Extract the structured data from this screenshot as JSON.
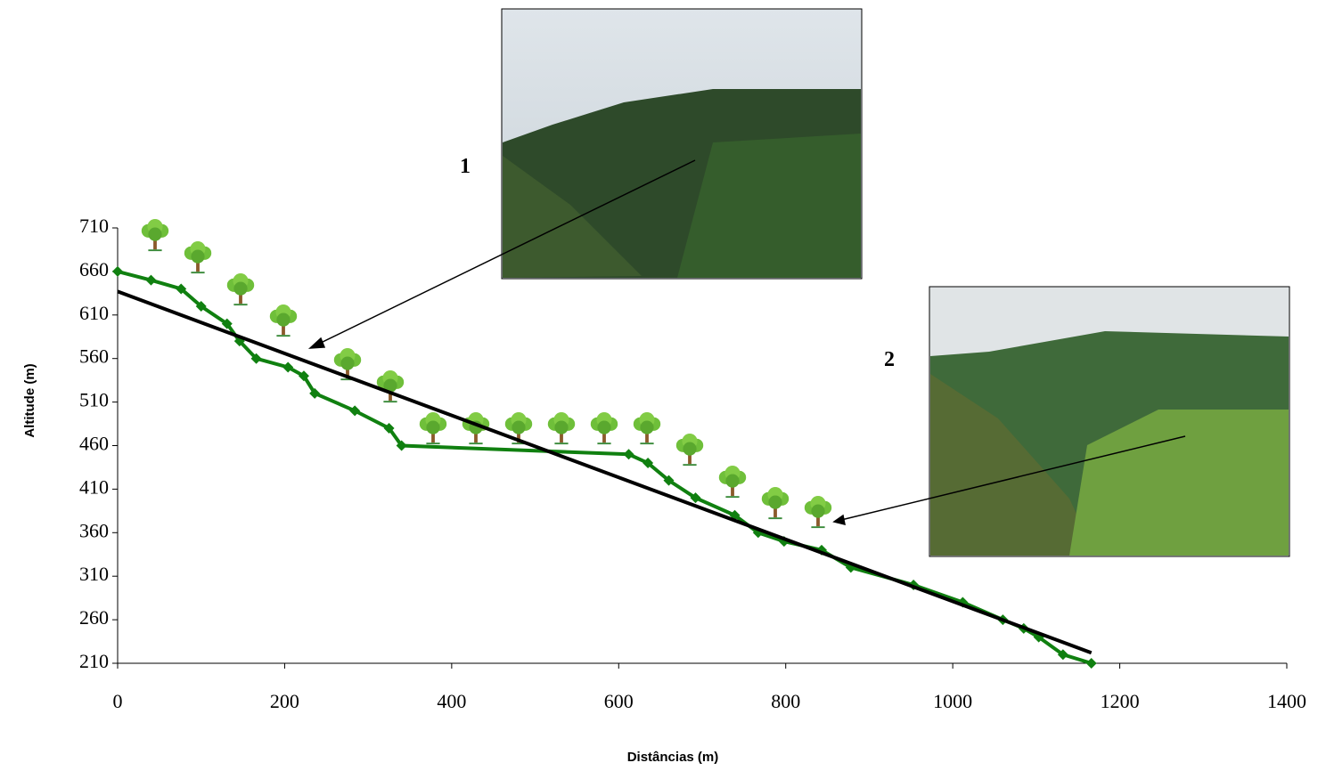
{
  "chart_data": {
    "type": "line",
    "x_label": "Distâncias (m)",
    "y_label": "Altitude (m)",
    "annotations": [
      "1",
      "2"
    ],
    "series": [
      {
        "color": "#108010",
        "x": [
          0,
          40,
          76,
          100,
          131,
          146,
          166,
          204,
          223,
          236,
          284,
          325,
          340,
          612,
          635,
          660,
          692,
          739,
          767,
          798,
          843,
          878,
          953,
          1012,
          1060,
          1085,
          1103,
          1132,
          1166
        ],
        "values": [
          660,
          650,
          640,
          620,
          600,
          580,
          560,
          550,
          540,
          520,
          500,
          480,
          460,
          450,
          440,
          420,
          400,
          380,
          360,
          350,
          340,
          320,
          300,
          280,
          260,
          250,
          240,
          220,
          210
        ],
        "markers": true
      },
      {
        "color": "#000000",
        "x": [
          0,
          1166
        ],
        "values": [
          637,
          222
        ],
        "markers": false
      }
    ],
    "xlim": [
      0,
      1400
    ],
    "xticks": [
      0,
      200,
      400,
      600,
      800,
      1000,
      1200,
      1400
    ],
    "ylim": [
      210,
      710
    ],
    "yticks": [
      210,
      260,
      310,
      360,
      410,
      460,
      510,
      560,
      610,
      660,
      710
    ]
  }
}
